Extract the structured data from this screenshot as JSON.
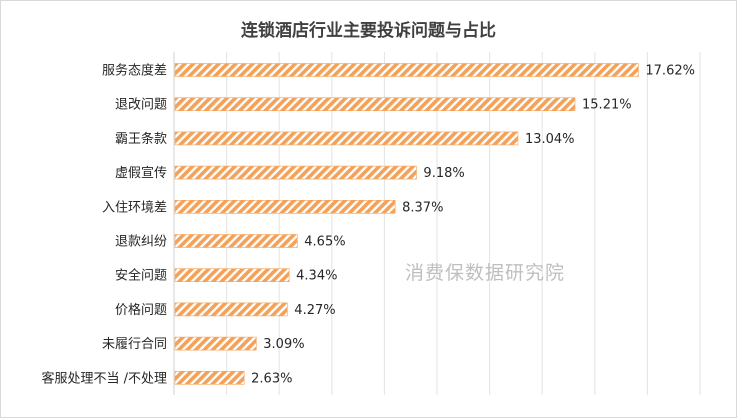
{
  "chart_data": {
    "type": "bar",
    "orientation": "horizontal",
    "title": "连锁酒店行业主要投诉问题与占比",
    "categories": [
      "服务态度差",
      "退改问题",
      "霸王条款",
      "虚假宣传",
      "入住环境差",
      "退款纠纷",
      "安全问题",
      "价格问题",
      "未履行合同",
      "客服处理不当 /不处理"
    ],
    "values": [
      17.62,
      15.21,
      13.04,
      9.18,
      8.37,
      4.65,
      4.34,
      4.27,
      3.09,
      2.63
    ],
    "value_labels": [
      "17.62%",
      "15.21%",
      "13.04%",
      "9.18%",
      "8.37%",
      "4.65%",
      "4.34%",
      "4.27%",
      "3.09%",
      "2.63%"
    ],
    "xlim": [
      0,
      20
    ],
    "grid": "vertical",
    "bar_color": "#f4a259",
    "bar_pattern": "diagonal-stripes",
    "watermark": "消费保数据研究院"
  }
}
